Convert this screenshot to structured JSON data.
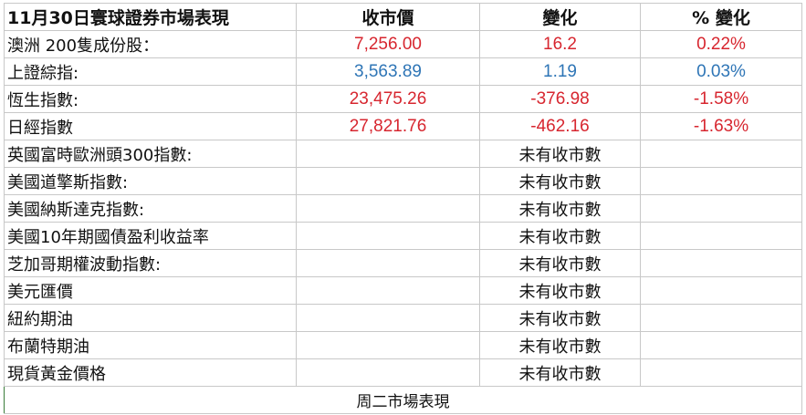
{
  "header": {
    "title": "11月30日寰球證券市場表現",
    "close": "收市價",
    "change": "變化",
    "pct_change": "% 變化"
  },
  "colors": {
    "up": "#d7262f",
    "flat": "#2e75b6"
  },
  "rows": [
    {
      "name": "澳洲 200隻成份股：",
      "close": "7,256.00",
      "change": "16.2",
      "pct": "0.22%",
      "color": "red"
    },
    {
      "name": "上證綜指:",
      "close": "3,563.89",
      "change": "1.19",
      "pct": "0.03%",
      "color": "blue"
    },
    {
      "name": "恆生指數:",
      "close": "23,475.26",
      "change": "-376.98",
      "pct": "-1.58%",
      "color": "red"
    },
    {
      "name": "日經指數",
      "close": "27,821.76",
      "change": "-462.16",
      "pct": "-1.63%",
      "color": "red"
    }
  ],
  "no_data_rows": [
    {
      "name": "英國富時歐洲頭300指數:",
      "status": "未有收市數"
    },
    {
      "name": "美國道擎斯指數:",
      "status": "未有收市數"
    },
    {
      "name": "美國納斯達克指數:",
      "status": "未有收市數"
    },
    {
      "name": "美國10年期國債盈利收益率",
      "status": "未有收市數"
    },
    {
      "name": "芝加哥期權波動指數:",
      "status": "未有收市數"
    },
    {
      "name": "美元匯價",
      "status": "未有收市數"
    },
    {
      "name": "紐約期油",
      "status": "未有收市數"
    },
    {
      "name": "布蘭特期油",
      "status": "未有收市數"
    },
    {
      "name": "現貨黃金價格",
      "status": "未有收市數"
    }
  ],
  "footer": "周二市場表現"
}
